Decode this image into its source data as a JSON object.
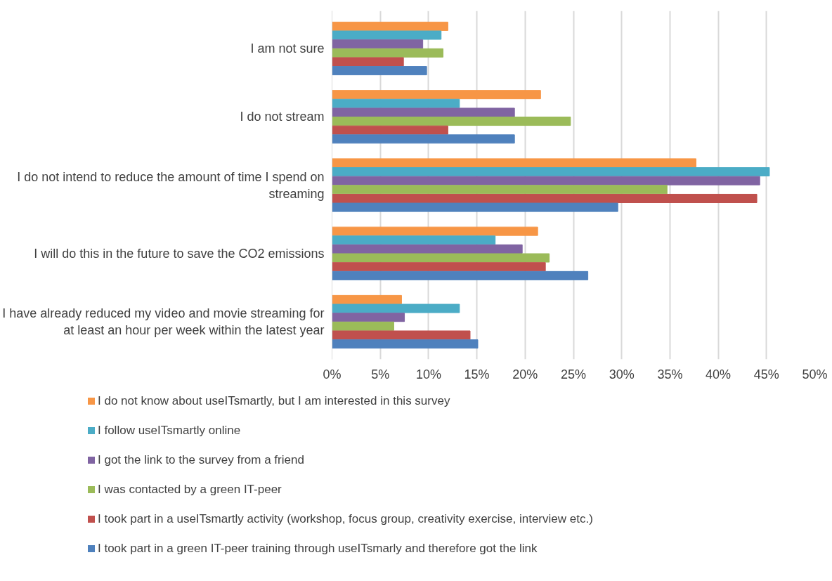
{
  "chart_data": {
    "type": "bar",
    "orientation": "horizontal",
    "categories": [
      "I am not sure",
      "I do not stream",
      "I do not intend to reduce the amount of time I spend on streaming",
      "I will do this in the future to save the CO2 emissions",
      "I have already reduced my video and movie streaming for at least an hour per week within the latest year"
    ],
    "series": [
      {
        "name": "I do not know about useITsmartly, but I am interested in this survey",
        "color": "#f79646",
        "values": [
          12.0,
          21.6,
          37.7,
          21.3,
          7.2
        ]
      },
      {
        "name": "I follow useITsmartly online",
        "color": "#4bacc6",
        "values": [
          11.3,
          13.2,
          45.3,
          16.9,
          13.2
        ]
      },
      {
        "name": "I got the link to the survey from a friend",
        "color": "#8064a2",
        "values": [
          9.4,
          18.9,
          44.3,
          19.7,
          7.5
        ]
      },
      {
        "name": "I was contacted by a green IT-peer",
        "color": "#9bbb59",
        "values": [
          11.5,
          24.7,
          34.7,
          22.5,
          6.4
        ]
      },
      {
        "name": "I took part in a useITsmartly activity (workshop, focus group, creativity exercise, interview etc.)",
        "color": "#c0504d",
        "values": [
          7.4,
          12.0,
          44.0,
          22.1,
          14.3
        ]
      },
      {
        "name": "I took part in a green IT-peer training through useITsmarly and therefore got the link",
        "color": "#4f81bd",
        "values": [
          9.8,
          18.9,
          29.6,
          26.5,
          15.1
        ]
      }
    ],
    "xlim": [
      0,
      50
    ],
    "xticks": [
      {
        "value": 0,
        "label": "0%"
      },
      {
        "value": 5,
        "label": "5%"
      },
      {
        "value": 10,
        "label": "10%"
      },
      {
        "value": 15,
        "label": "15%"
      },
      {
        "value": 20,
        "label": "20%"
      },
      {
        "value": 25,
        "label": "25%"
      },
      {
        "value": 30,
        "label": "30%"
      },
      {
        "value": 35,
        "label": "35%"
      },
      {
        "value": 40,
        "label": "40%"
      },
      {
        "value": 45,
        "label": "45%"
      },
      {
        "value": 50,
        "label": "50%"
      }
    ],
    "grid": "x",
    "legend": "bottom"
  }
}
